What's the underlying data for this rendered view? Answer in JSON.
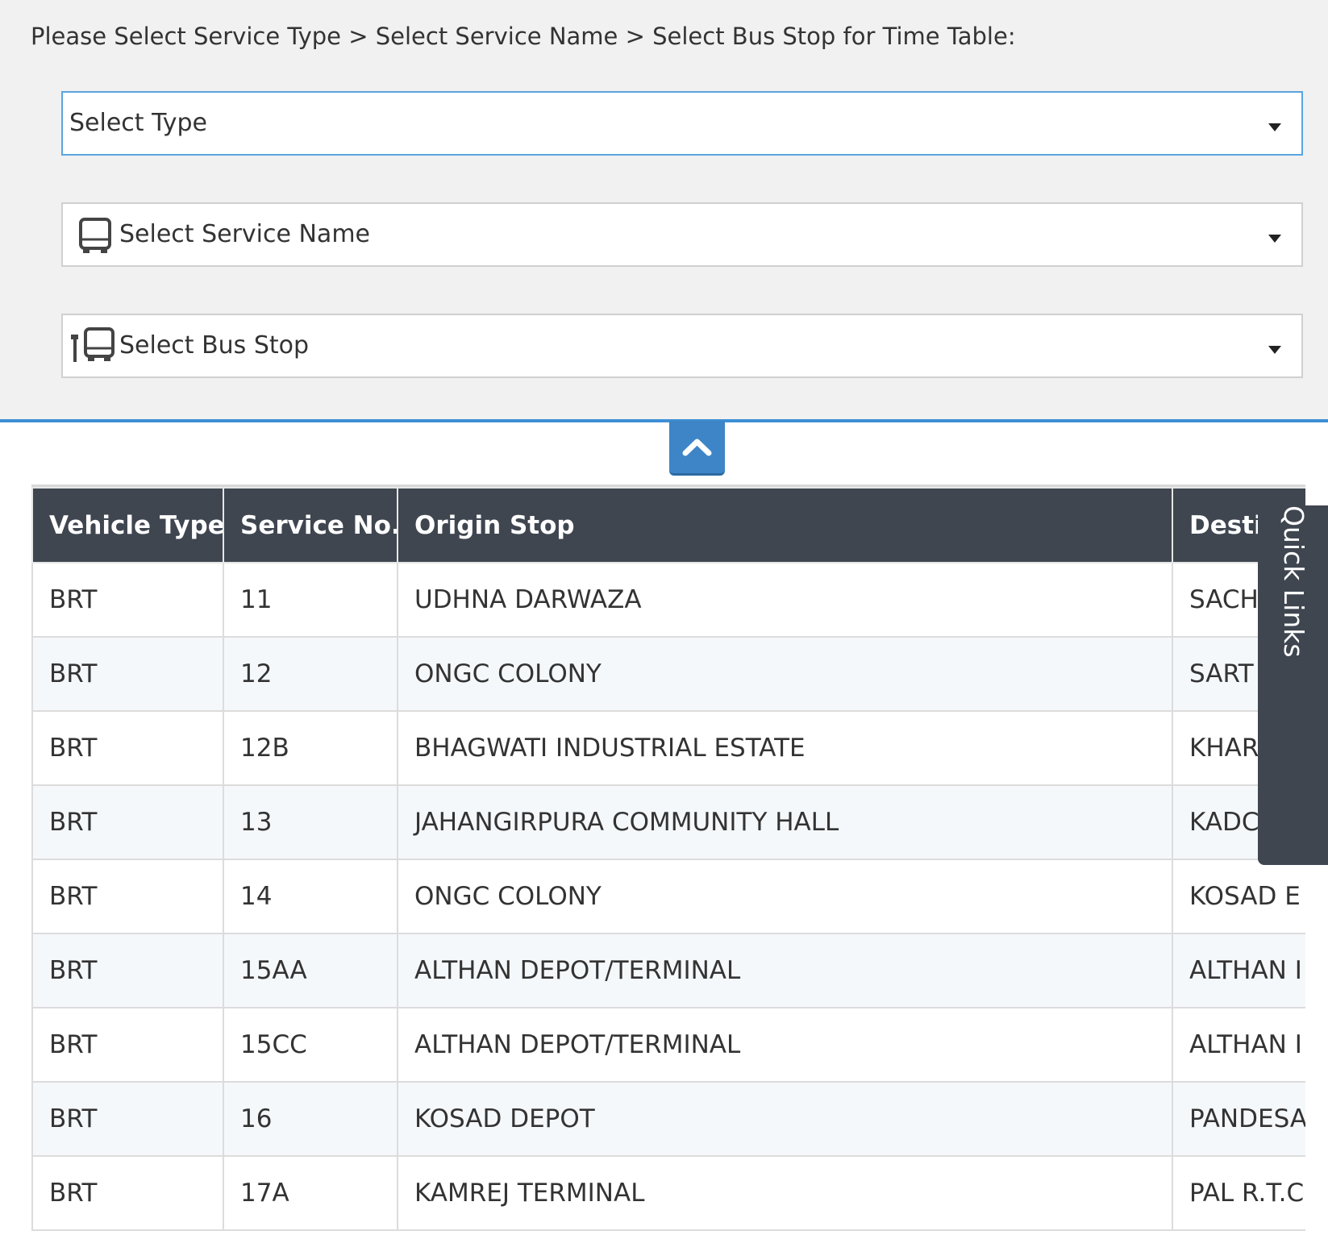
{
  "instruction": "Please Select Service Type > Select Service Name > Select Bus Stop for Time Table:",
  "selects": [
    "Select Type",
    "Select Service Name",
    "Select Bus Stop"
  ],
  "table": {
    "headers": [
      "Vehicle Type",
      "Service No.",
      "Origin Stop",
      "Desti"
    ],
    "rows": [
      [
        "BRT",
        "11",
        "UDHNA DARWAZA",
        "SACH"
      ],
      [
        "BRT",
        "12",
        "ONGC COLONY",
        "SART"
      ],
      [
        "BRT",
        "12B",
        "BHAGWATI INDUSTRIAL ESTATE",
        "KHAR"
      ],
      [
        "BRT",
        "13",
        "JAHANGIRPURA COMMUNITY HALL",
        "KADC"
      ],
      [
        "BRT",
        "14",
        "ONGC COLONY",
        "KOSAD E"
      ],
      [
        "BRT",
        "15AA",
        "ALTHAN DEPOT/TERMINAL",
        "ALTHAN I"
      ],
      [
        "BRT",
        "15CC",
        "ALTHAN DEPOT/TERMINAL",
        "ALTHAN I"
      ],
      [
        "BRT",
        "16",
        "KOSAD DEPOT",
        "PANDESA"
      ],
      [
        "BRT",
        "17A",
        "KAMREJ TERMINAL",
        "PAL R.T.C"
      ]
    ]
  },
  "quick_links": "Quick Links"
}
